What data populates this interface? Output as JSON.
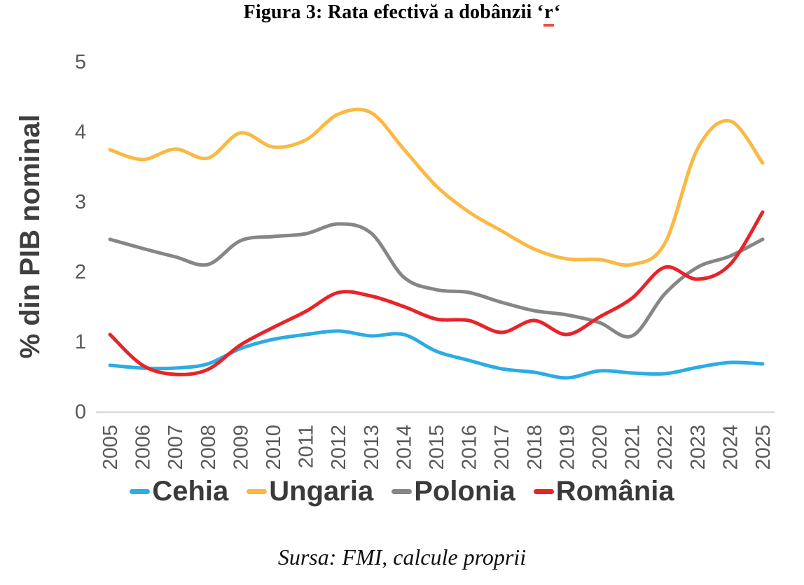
{
  "title": {
    "prefix": "Figura 3: Rata efectivă a dobânzii ‘",
    "underlined": "r",
    "suffix": "‘"
  },
  "source": "Sursa: FMI, calcule proprii",
  "chart_data": {
    "type": "line",
    "title": "Figura 3: Rata efectivă a dobânzii ‘r‘",
    "xlabel": "",
    "ylabel": "% din PIB nominal",
    "x": [
      2005,
      2006,
      2007,
      2008,
      2009,
      2010,
      2011,
      2012,
      2013,
      2014,
      2015,
      2016,
      2017,
      2018,
      2019,
      2020,
      2021,
      2022,
      2023,
      2024,
      2025
    ],
    "series": [
      {
        "name": "Cehia",
        "color": "#2CACE4",
        "values": [
          0.66,
          0.62,
          0.62,
          0.68,
          0.9,
          1.03,
          1.1,
          1.15,
          1.08,
          1.1,
          0.86,
          0.73,
          0.61,
          0.56,
          0.48,
          0.58,
          0.55,
          0.54,
          0.63,
          0.7,
          0.68
        ]
      },
      {
        "name": "Ungaria",
        "color": "#FBB843",
        "values": [
          3.74,
          3.6,
          3.75,
          3.62,
          3.98,
          3.78,
          3.88,
          4.25,
          4.27,
          3.75,
          3.22,
          2.85,
          2.58,
          2.32,
          2.18,
          2.17,
          2.1,
          2.4,
          3.75,
          4.15,
          3.55
        ]
      },
      {
        "name": "Polonia",
        "color": "#868686",
        "values": [
          2.46,
          2.33,
          2.21,
          2.1,
          2.44,
          2.5,
          2.54,
          2.68,
          2.55,
          1.92,
          1.74,
          1.7,
          1.56,
          1.44,
          1.38,
          1.27,
          1.08,
          1.68,
          2.06,
          2.22,
          2.46
        ]
      },
      {
        "name": "România",
        "color": "#E8242B",
        "values": [
          1.1,
          0.66,
          0.53,
          0.6,
          0.95,
          1.2,
          1.43,
          1.7,
          1.65,
          1.5,
          1.32,
          1.3,
          1.13,
          1.3,
          1.1,
          1.35,
          1.62,
          2.06,
          1.89,
          2.1,
          2.85
        ]
      }
    ],
    "yticks": [
      0,
      1,
      2,
      3,
      4,
      5
    ],
    "ylim": [
      0,
      5
    ],
    "xlim": [
      2005,
      2025
    ],
    "grid": false,
    "legend_position": "bottom",
    "colors": {
      "axis_line": "#D9D9D9",
      "tick_label": "#595959",
      "axis_title": "#3F3F3F",
      "legend_label": "#3A3A3A",
      "title_underline": "#F0504D"
    }
  }
}
